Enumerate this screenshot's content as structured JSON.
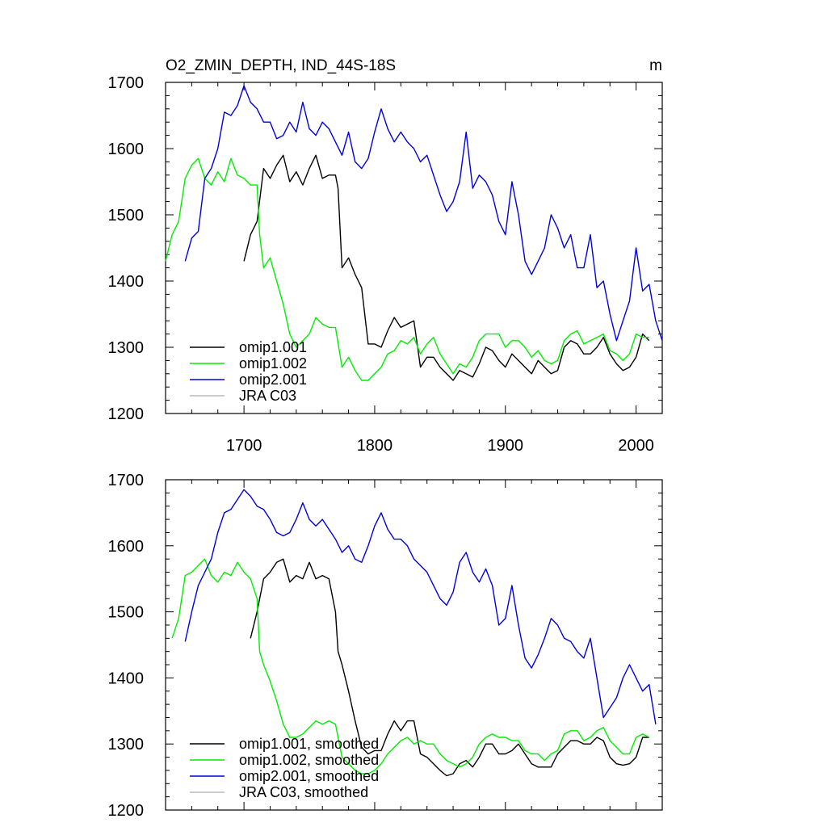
{
  "chart_data": [
    {
      "type": "line",
      "title": "O2_ZMIN_DEPTH, IND_44S-18S",
      "units": "m",
      "xlim": [
        1640,
        2020
      ],
      "ylim": [
        1200,
        1700
      ],
      "xticks": [
        1700,
        1800,
        1900,
        2000
      ],
      "yticks": [
        1200,
        1300,
        1400,
        1500,
        1600,
        1700
      ],
      "xtick_labels": [
        "1700",
        "1800",
        "1900",
        "2000"
      ],
      "ytick_labels": [
        "1200",
        "1300",
        "1400",
        "1500",
        "1600",
        "1700"
      ],
      "legend": {
        "position": "bottom-left",
        "entries": [
          "omip1.001",
          "omip1.002",
          "omip2.001",
          "JRA C03"
        ]
      },
      "series": [
        {
          "name": "omip1.001",
          "color": "#000000",
          "x": [
            1700,
            1705,
            1710,
            1715,
            1720,
            1725,
            1730,
            1735,
            1740,
            1745,
            1750,
            1755,
            1760,
            1765,
            1770,
            1772,
            1775,
            1780,
            1785,
            1790,
            1795,
            1800,
            1805,
            1810,
            1815,
            1820,
            1825,
            1830,
            1835,
            1840,
            1845,
            1850,
            1855,
            1860,
            1865,
            1870,
            1875,
            1880,
            1885,
            1890,
            1895,
            1900,
            1905,
            1910,
            1915,
            1920,
            1925,
            1930,
            1935,
            1940,
            1945,
            1950,
            1955,
            1960,
            1965,
            1970,
            1975,
            1980,
            1985,
            1990,
            1995,
            2000,
            2005,
            2010
          ],
          "y": [
            1430,
            1470,
            1490,
            1570,
            1555,
            1575,
            1590,
            1550,
            1565,
            1545,
            1570,
            1590,
            1555,
            1560,
            1560,
            1540,
            1420,
            1435,
            1410,
            1390,
            1305,
            1305,
            1300,
            1325,
            1345,
            1330,
            1335,
            1340,
            1270,
            1285,
            1285,
            1270,
            1260,
            1250,
            1265,
            1260,
            1255,
            1275,
            1300,
            1295,
            1280,
            1270,
            1290,
            1280,
            1270,
            1260,
            1280,
            1270,
            1260,
            1265,
            1300,
            1310,
            1305,
            1290,
            1290,
            1300,
            1315,
            1290,
            1275,
            1265,
            1270,
            1285,
            1320,
            1310
          ]
        },
        {
          "name": "omip1.002",
          "color": "#00ee00",
          "x": [
            1640,
            1645,
            1650,
            1655,
            1660,
            1665,
            1670,
            1675,
            1680,
            1685,
            1690,
            1695,
            1700,
            1705,
            1710,
            1712,
            1715,
            1720,
            1725,
            1730,
            1735,
            1740,
            1745,
            1750,
            1755,
            1760,
            1765,
            1770,
            1775,
            1780,
            1785,
            1790,
            1795,
            1800,
            1805,
            1810,
            1815,
            1820,
            1825,
            1830,
            1835,
            1840,
            1845,
            1850,
            1855,
            1860,
            1865,
            1870,
            1875,
            1880,
            1885,
            1890,
            1895,
            1900,
            1905,
            1910,
            1915,
            1920,
            1925,
            1930,
            1935,
            1940,
            1945,
            1950,
            1955,
            1960,
            1965,
            1970,
            1975,
            1980,
            1985,
            1990,
            1995,
            2000,
            2005,
            2010
          ],
          "y": [
            1430,
            1470,
            1490,
            1555,
            1575,
            1585,
            1555,
            1545,
            1565,
            1550,
            1585,
            1560,
            1555,
            1545,
            1545,
            1470,
            1420,
            1435,
            1400,
            1365,
            1320,
            1300,
            1310,
            1320,
            1345,
            1335,
            1330,
            1330,
            1270,
            1285,
            1265,
            1250,
            1250,
            1260,
            1270,
            1290,
            1295,
            1310,
            1305,
            1315,
            1290,
            1305,
            1315,
            1290,
            1275,
            1260,
            1275,
            1270,
            1285,
            1310,
            1320,
            1320,
            1320,
            1300,
            1310,
            1310,
            1300,
            1285,
            1295,
            1280,
            1275,
            1280,
            1310,
            1320,
            1325,
            1305,
            1310,
            1315,
            1320,
            1295,
            1290,
            1280,
            1290,
            1320,
            1315,
            1315
          ]
        },
        {
          "name": "omip2.001",
          "color": "#0000dd",
          "x": [
            1655,
            1660,
            1665,
            1670,
            1675,
            1680,
            1685,
            1690,
            1695,
            1700,
            1705,
            1710,
            1715,
            1720,
            1725,
            1730,
            1735,
            1740,
            1745,
            1750,
            1755,
            1760,
            1765,
            1770,
            1775,
            1780,
            1785,
            1790,
            1795,
            1800,
            1805,
            1810,
            1815,
            1820,
            1825,
            1830,
            1835,
            1840,
            1845,
            1850,
            1855,
            1860,
            1865,
            1870,
            1875,
            1880,
            1885,
            1890,
            1895,
            1900,
            1905,
            1910,
            1915,
            1920,
            1925,
            1930,
            1935,
            1940,
            1945,
            1950,
            1955,
            1960,
            1965,
            1970,
            1975,
            1980,
            1985,
            1990,
            1995,
            2000,
            2005,
            2010,
            2015,
            2020
          ],
          "y": [
            1430,
            1465,
            1475,
            1555,
            1570,
            1600,
            1655,
            1650,
            1665,
            1695,
            1670,
            1660,
            1640,
            1640,
            1615,
            1620,
            1640,
            1625,
            1670,
            1630,
            1620,
            1640,
            1630,
            1610,
            1590,
            1625,
            1580,
            1570,
            1585,
            1625,
            1660,
            1630,
            1610,
            1625,
            1610,
            1600,
            1580,
            1590,
            1560,
            1530,
            1505,
            1520,
            1550,
            1625,
            1540,
            1560,
            1550,
            1530,
            1490,
            1470,
            1550,
            1500,
            1430,
            1410,
            1430,
            1450,
            1500,
            1480,
            1450,
            1470,
            1420,
            1420,
            1470,
            1390,
            1400,
            1350,
            1310,
            1340,
            1370,
            1450,
            1385,
            1395,
            1340,
            1310
          ]
        },
        {
          "name": "JRA C03",
          "color": "#bbbbbb",
          "x": [],
          "y": []
        }
      ]
    },
    {
      "type": "line",
      "xlim": [
        1640,
        2020
      ],
      "ylim": [
        1200,
        1700
      ],
      "xticks": [
        1700,
        1800,
        1900,
        2000
      ],
      "yticks": [
        1200,
        1300,
        1400,
        1500,
        1600,
        1700
      ],
      "ytick_labels": [
        "1200",
        "1300",
        "1400",
        "1500",
        "1600",
        "1700"
      ],
      "legend": {
        "position": "bottom-left",
        "entries": [
          "omip1.001, smoothed",
          "omip1.002, smoothed",
          "omip2.001, smoothed",
          "JRA C03, smoothed"
        ]
      },
      "series": [
        {
          "name": "omip1.001, smoothed",
          "color": "#000000",
          "x": [
            1705,
            1710,
            1715,
            1720,
            1725,
            1730,
            1735,
            1740,
            1745,
            1750,
            1755,
            1760,
            1765,
            1770,
            1772,
            1775,
            1780,
            1785,
            1790,
            1795,
            1800,
            1805,
            1810,
            1815,
            1820,
            1825,
            1830,
            1835,
            1840,
            1845,
            1850,
            1855,
            1860,
            1865,
            1870,
            1875,
            1880,
            1885,
            1890,
            1895,
            1900,
            1905,
            1910,
            1915,
            1920,
            1925,
            1930,
            1935,
            1940,
            1945,
            1950,
            1955,
            1960,
            1965,
            1970,
            1975,
            1980,
            1985,
            1990,
            1995,
            2000,
            2005,
            2010
          ],
          "y": [
            1460,
            1500,
            1550,
            1560,
            1575,
            1580,
            1545,
            1555,
            1550,
            1575,
            1550,
            1555,
            1550,
            1500,
            1440,
            1420,
            1380,
            1335,
            1295,
            1285,
            1290,
            1290,
            1315,
            1335,
            1320,
            1335,
            1335,
            1285,
            1280,
            1270,
            1260,
            1252,
            1255,
            1270,
            1275,
            1265,
            1280,
            1300,
            1300,
            1285,
            1285,
            1290,
            1300,
            1285,
            1270,
            1265,
            1265,
            1265,
            1285,
            1295,
            1305,
            1305,
            1300,
            1300,
            1310,
            1305,
            1280,
            1270,
            1268,
            1270,
            1280,
            1310,
            1310
          ]
        },
        {
          "name": "omip1.002, smoothed",
          "color": "#00ee00",
          "x": [
            1645,
            1650,
            1655,
            1660,
            1665,
            1670,
            1675,
            1680,
            1685,
            1690,
            1695,
            1700,
            1705,
            1710,
            1712,
            1715,
            1720,
            1725,
            1730,
            1735,
            1740,
            1745,
            1750,
            1755,
            1760,
            1765,
            1770,
            1775,
            1780,
            1785,
            1790,
            1795,
            1800,
            1805,
            1810,
            1815,
            1820,
            1825,
            1830,
            1835,
            1840,
            1845,
            1850,
            1855,
            1860,
            1865,
            1870,
            1875,
            1880,
            1885,
            1890,
            1895,
            1900,
            1905,
            1910,
            1915,
            1920,
            1925,
            1930,
            1935,
            1940,
            1945,
            1950,
            1955,
            1960,
            1965,
            1970,
            1975,
            1980,
            1985,
            1990,
            1995,
            2000,
            2005,
            2010
          ],
          "y": [
            1460,
            1490,
            1555,
            1560,
            1570,
            1580,
            1555,
            1545,
            1560,
            1555,
            1575,
            1560,
            1550,
            1520,
            1440,
            1420,
            1395,
            1365,
            1330,
            1310,
            1310,
            1315,
            1325,
            1335,
            1330,
            1335,
            1330,
            1280,
            1270,
            1260,
            1255,
            1255,
            1260,
            1270,
            1285,
            1295,
            1305,
            1310,
            1300,
            1305,
            1300,
            1300,
            1285,
            1275,
            1270,
            1265,
            1270,
            1280,
            1300,
            1310,
            1315,
            1310,
            1310,
            1305,
            1305,
            1290,
            1285,
            1285,
            1275,
            1285,
            1290,
            1315,
            1320,
            1320,
            1305,
            1310,
            1320,
            1325,
            1305,
            1295,
            1285,
            1285,
            1310,
            1315,
            1310
          ]
        },
        {
          "name": "omip2.001, smoothed",
          "color": "#0000dd",
          "x": [
            1655,
            1660,
            1665,
            1670,
            1675,
            1680,
            1685,
            1690,
            1695,
            1700,
            1705,
            1710,
            1715,
            1720,
            1725,
            1730,
            1735,
            1740,
            1745,
            1750,
            1755,
            1760,
            1765,
            1770,
            1775,
            1780,
            1785,
            1790,
            1795,
            1800,
            1805,
            1810,
            1815,
            1820,
            1825,
            1830,
            1835,
            1840,
            1845,
            1850,
            1855,
            1860,
            1865,
            1870,
            1875,
            1880,
            1885,
            1890,
            1895,
            1900,
            1905,
            1910,
            1915,
            1920,
            1925,
            1930,
            1935,
            1940,
            1945,
            1950,
            1955,
            1960,
            1965,
            1970,
            1975,
            1980,
            1985,
            1990,
            1995,
            2000,
            2005,
            2010,
            2015
          ],
          "y": [
            1455,
            1500,
            1540,
            1560,
            1580,
            1620,
            1650,
            1655,
            1670,
            1685,
            1675,
            1660,
            1655,
            1640,
            1620,
            1615,
            1620,
            1640,
            1665,
            1640,
            1630,
            1640,
            1625,
            1610,
            1590,
            1600,
            1580,
            1575,
            1600,
            1630,
            1650,
            1625,
            1610,
            1610,
            1600,
            1580,
            1570,
            1560,
            1540,
            1520,
            1510,
            1530,
            1575,
            1590,
            1560,
            1545,
            1565,
            1540,
            1480,
            1490,
            1540,
            1480,
            1430,
            1415,
            1435,
            1460,
            1490,
            1480,
            1460,
            1455,
            1440,
            1430,
            1460,
            1400,
            1340,
            1355,
            1370,
            1400,
            1420,
            1400,
            1380,
            1390,
            1330
          ]
        },
        {
          "name": "JRA C03, smoothed",
          "color": "#bbbbbb",
          "x": [],
          "y": []
        }
      ]
    }
  ]
}
